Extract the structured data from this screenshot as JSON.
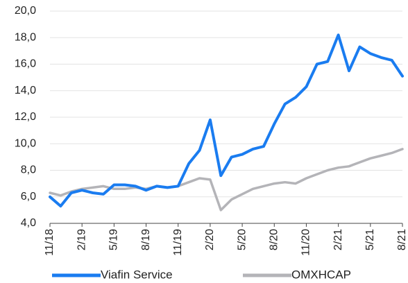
{
  "chart_data": {
    "type": "line",
    "categories": [
      "11/18",
      null,
      null,
      "2/19",
      null,
      null,
      "5/19",
      null,
      null,
      "8/19",
      null,
      null,
      "11/19",
      null,
      null,
      "2/20",
      null,
      null,
      "5/20",
      null,
      null,
      "8/20",
      null,
      null,
      "11/20",
      null,
      null,
      "2/21",
      null,
      null,
      "5/21",
      null,
      null,
      "8/21"
    ],
    "series": [
      {
        "name": "Viafin Service",
        "color": "#1a7cf0",
        "values": [
          6.0,
          5.3,
          6.3,
          6.5,
          6.3,
          6.2,
          6.9,
          6.9,
          6.8,
          6.5,
          6.8,
          6.7,
          6.8,
          8.5,
          9.5,
          11.8,
          7.6,
          9.0,
          9.2,
          9.6,
          9.8,
          11.5,
          13.0,
          13.5,
          14.3,
          16.0,
          16.2,
          18.2,
          15.5,
          17.3,
          16.8,
          16.5,
          16.3,
          15.1
        ]
      },
      {
        "name": "OMXHCAP",
        "color": "#b4b4b8",
        "values": [
          6.3,
          6.1,
          6.4,
          6.6,
          6.7,
          6.8,
          6.6,
          6.6,
          6.7,
          6.6,
          6.8,
          6.7,
          6.8,
          7.1,
          7.4,
          7.3,
          5.0,
          5.8,
          6.2,
          6.6,
          6.8,
          7.0,
          7.1,
          7.0,
          7.4,
          7.7,
          8.0,
          8.2,
          8.3,
          8.6,
          8.9,
          9.1,
          9.3,
          9.6
        ]
      }
    ],
    "ylim": [
      4,
      20
    ],
    "yticks": [
      {
        "value": 4,
        "label": "4,0"
      },
      {
        "value": 6,
        "label": "6,0"
      },
      {
        "value": 8,
        "label": "8,0"
      },
      {
        "value": 10,
        "label": "10,0"
      },
      {
        "value": 12,
        "label": "12,0"
      },
      {
        "value": 14,
        "label": "14,0"
      },
      {
        "value": 16,
        "label": "16,0"
      },
      {
        "value": 18,
        "label": "18,0"
      },
      {
        "value": 20,
        "label": "20,0"
      }
    ],
    "grid": true
  }
}
